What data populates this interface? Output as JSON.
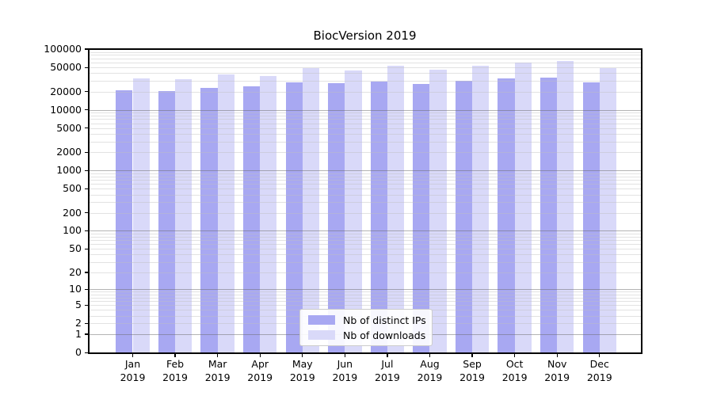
{
  "title": "BiocVersion 2019",
  "chart_data": {
    "type": "bar",
    "title": "BiocVersion 2019",
    "categories": [
      "Jan 2019",
      "Feb 2019",
      "Mar 2019",
      "Apr 2019",
      "May 2019",
      "Jun 2019",
      "Jul 2019",
      "Aug 2019",
      "Sep 2019",
      "Oct 2019",
      "Nov 2019",
      "Dec 2019"
    ],
    "series": [
      {
        "name": "Nb of distinct IPs",
        "color": "#a8a8f2",
        "values": [
          21000,
          20500,
          23000,
          24000,
          28400,
          27800,
          29000,
          26400,
          29800,
          32800,
          33800,
          28200
        ]
      },
      {
        "name": "Nb of downloads",
        "color": "#d9d9f9",
        "values": [
          32900,
          31900,
          38300,
          36000,
          49300,
          44800,
          53100,
          46000,
          52400,
          59900,
          63700,
          48500
        ]
      }
    ],
    "yscale": "log10(1+x)",
    "ylim": [
      0,
      100000
    ],
    "yticks": [
      0,
      1,
      2,
      5,
      10,
      20,
      50,
      100,
      200,
      500,
      1000,
      2000,
      5000,
      10000,
      20000,
      50000,
      100000
    ],
    "grid": "major and minor horizontal gridlines, drawn over bars",
    "legend_position": "lower center inside plot"
  }
}
